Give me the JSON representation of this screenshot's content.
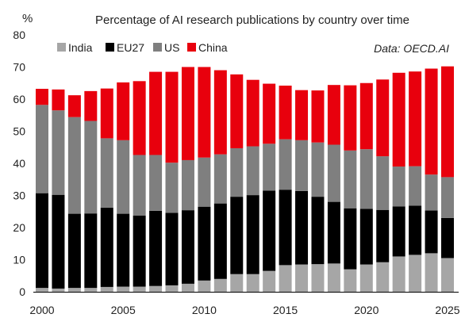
{
  "chart_data": {
    "type": "bar",
    "stacked": true,
    "title": "Percentage of AI research publications by country over time",
    "ylabel": "%",
    "source": "Data: OECD.AI",
    "ylim": [
      0,
      80
    ],
    "yticks": [
      0,
      10,
      20,
      30,
      40,
      50,
      60,
      70,
      80
    ],
    "xticks": [
      2000,
      2005,
      2010,
      2015,
      2020,
      2025
    ],
    "legend_position": "top-left",
    "grid": false,
    "categories": [
      2000,
      2001,
      2002,
      2003,
      2004,
      2005,
      2006,
      2007,
      2008,
      2009,
      2010,
      2011,
      2012,
      2013,
      2014,
      2015,
      2016,
      2017,
      2018,
      2019,
      2020,
      2021,
      2022,
      2023,
      2024,
      2025
    ],
    "series": [
      {
        "name": "India",
        "color": "#a6a6a6",
        "values": [
          1.2,
          1.0,
          1.2,
          1.2,
          1.5,
          1.6,
          1.6,
          1.8,
          2.0,
          2.5,
          3.5,
          4.0,
          5.5,
          5.5,
          6.5,
          8.3,
          8.5,
          8.6,
          8.8,
          7.0,
          8.5,
          9.2,
          11.0,
          11.5,
          12.0,
          10.5
        ]
      },
      {
        "name": "EU27",
        "color": "#000000",
        "values": [
          29.5,
          29.2,
          23.1,
          23.2,
          24.7,
          22.7,
          22.1,
          23.4,
          22.6,
          22.9,
          23.0,
          23.5,
          24.1,
          24.6,
          25.0,
          23.5,
          22.9,
          21.0,
          19.2,
          19.0,
          17.3,
          16.3,
          15.6,
          15.3,
          13.3,
          12.5
        ]
      },
      {
        "name": "US",
        "color": "#7f7f7f",
        "values": [
          27.5,
          26.3,
          30.1,
          28.8,
          21.6,
          22.9,
          18.9,
          17.4,
          15.6,
          15.6,
          15.3,
          15.3,
          15.1,
          15.2,
          14.6,
          15.7,
          15.8,
          16.9,
          17.8,
          18.0,
          18.6,
          16.7,
          12.4,
          12.3,
          11.2,
          12.7
        ]
      },
      {
        "name": "China",
        "color": "#e8000d",
        "values": [
          5.0,
          6.5,
          6.8,
          9.3,
          15.5,
          18.0,
          23.0,
          25.9,
          28.3,
          29.0,
          28.2,
          26.2,
          23.0,
          20.7,
          18.7,
          16.7,
          15.6,
          16.2,
          18.6,
          20.3,
          20.6,
          23.9,
          29.2,
          29.5,
          33.0,
          34.5
        ]
      }
    ]
  }
}
